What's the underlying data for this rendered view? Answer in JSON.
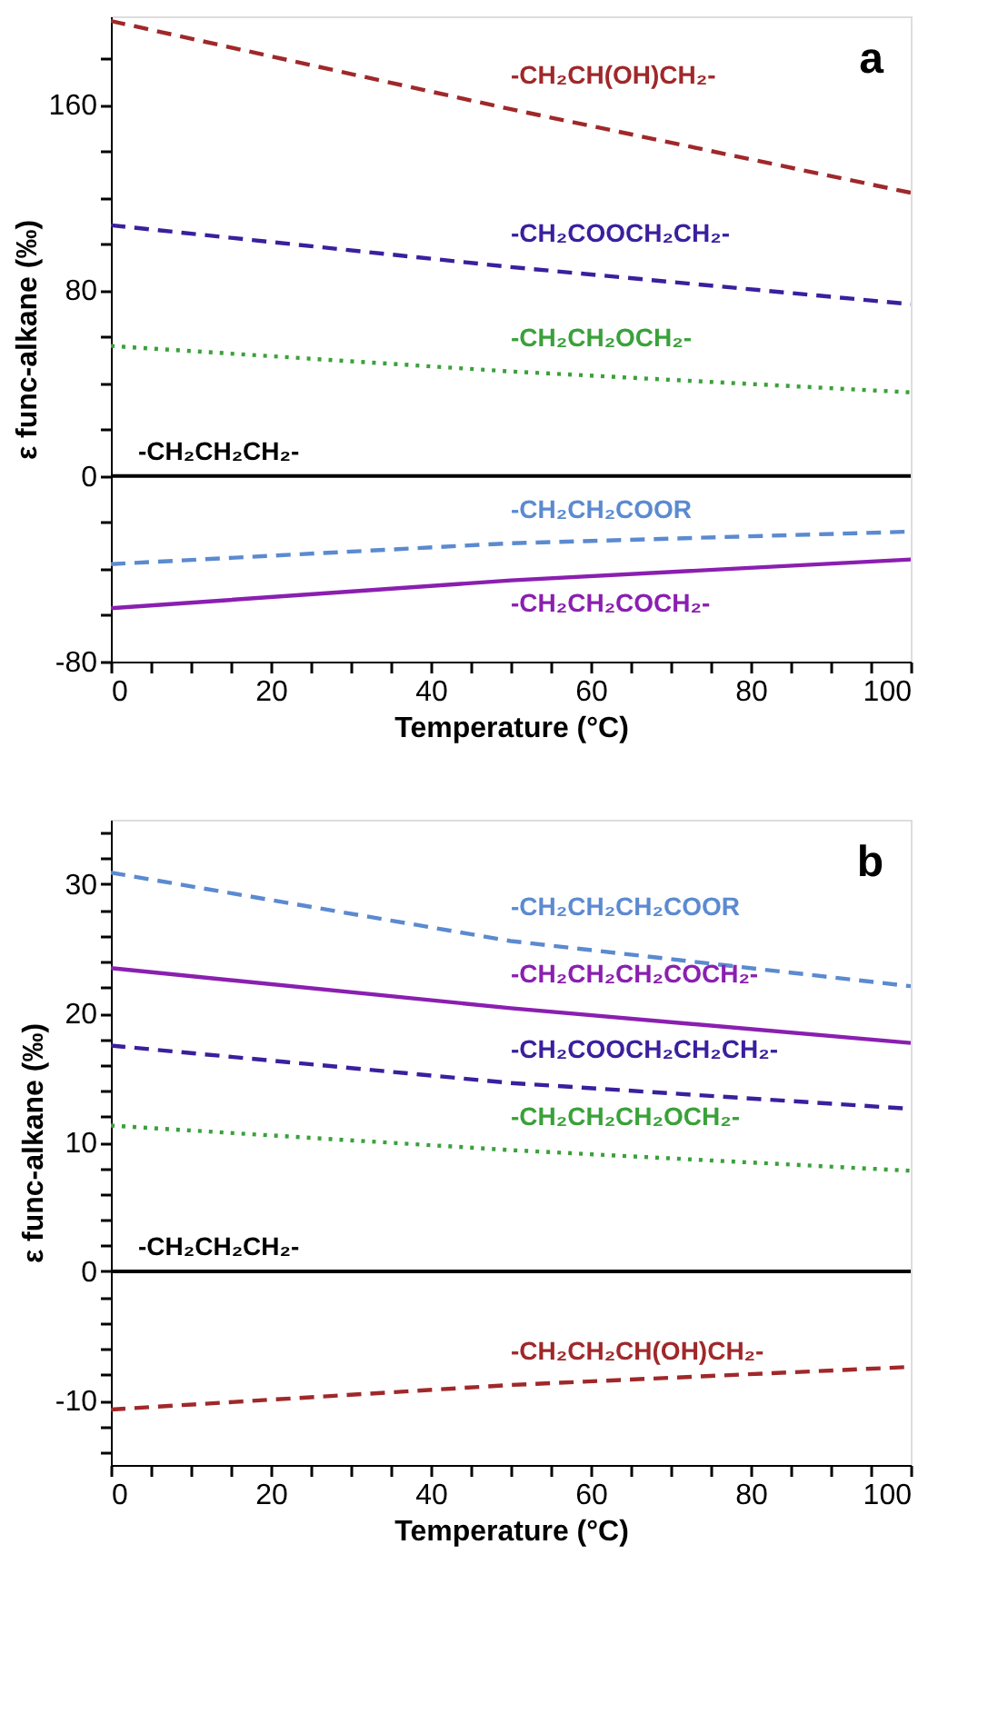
{
  "chart_data": [
    {
      "type": "line",
      "xlabel": "Temperature (°C)",
      "ylabel": "ε func-alkane (‰)",
      "annotations": [
        "a"
      ],
      "x": [
        0,
        50,
        100
      ],
      "xlim": [
        0,
        100
      ],
      "xticks": [
        0,
        {
          "value": 5,
          "label": null
        },
        {
          "value": 10,
          "label": null
        },
        {
          "value": 15,
          "label": null
        },
        20,
        {
          "value": 25,
          "label": null
        },
        {
          "value": 30,
          "label": null
        },
        {
          "value": 35,
          "label": null
        },
        40,
        {
          "value": 45,
          "label": null
        },
        {
          "value": 50,
          "label": null
        },
        {
          "value": 55,
          "label": null
        },
        60,
        {
          "value": 65,
          "label": null
        },
        {
          "value": 70,
          "label": null
        },
        {
          "value": 75,
          "label": null
        },
        80,
        {
          "value": 85,
          "label": null
        },
        {
          "value": 90,
          "label": null
        },
        {
          "value": 95,
          "label": null
        },
        100
      ],
      "ylim": [
        -80,
        198
      ],
      "yticks": [
        -80,
        {
          "value": -60,
          "label": null
        },
        {
          "value": -40,
          "label": null
        },
        {
          "value": -20,
          "label": null
        },
        0,
        {
          "value": 20,
          "label": null
        },
        {
          "value": 40,
          "label": null
        },
        {
          "value": 60,
          "label": null
        },
        80,
        {
          "value": 100,
          "label": null
        },
        {
          "value": 120,
          "label": null
        },
        {
          "value": 140,
          "label": null
        },
        160,
        {
          "value": 180,
          "label": null
        }
      ],
      "grid": false,
      "legend": false,
      "ref_lines": [
        {
          "axis": "y",
          "value": 0,
          "label": "-CH₂CH₂CH₂-",
          "color": "#000000",
          "line_style": "solid"
        }
      ],
      "series": [
        {
          "name": "-CH₂CH(OH)CH₂-",
          "color": "#a0282a",
          "line_style": "dashed",
          "values": [
            196,
            158,
            122
          ]
        },
        {
          "name": "-CH₂COOCH₂CH₂-",
          "color": "#3a1f9e",
          "line_style": "dashed",
          "values": [
            108,
            90,
            74
          ]
        },
        {
          "name": "-CH₂CH₂OCH₂-",
          "color": "#3aa13a",
          "line_style": "dotted",
          "values": [
            56,
            45,
            36
          ]
        },
        {
          "name": "-CH₂CH₂COOR",
          "color": "#5b8ad0",
          "line_style": "dashed",
          "values": [
            -38,
            -29,
            -24
          ]
        },
        {
          "name": "-CH₂CH₂COCH₂-",
          "color": "#8a1fb0",
          "line_style": "solid",
          "values": [
            -57,
            -45,
            -36
          ]
        }
      ]
    },
    {
      "type": "line",
      "xlabel": "Temperature (°C)",
      "ylabel": "ε func-alkane (‰)",
      "annotations": [
        "b"
      ],
      "x": [
        0,
        50,
        100
      ],
      "xlim": [
        0,
        100
      ],
      "xticks": [
        0,
        {
          "value": 5,
          "label": null
        },
        {
          "value": 10,
          "label": null
        },
        {
          "value": 15,
          "label": null
        },
        20,
        {
          "value": 25,
          "label": null
        },
        {
          "value": 30,
          "label": null
        },
        {
          "value": 35,
          "label": null
        },
        40,
        {
          "value": 45,
          "label": null
        },
        {
          "value": 50,
          "label": null
        },
        {
          "value": 55,
          "label": null
        },
        60,
        {
          "value": 65,
          "label": null
        },
        {
          "value": 70,
          "label": null
        },
        {
          "value": 75,
          "label": null
        },
        80,
        {
          "value": 85,
          "label": null
        },
        {
          "value": 90,
          "label": null
        },
        {
          "value": 95,
          "label": null
        },
        100
      ],
      "ylim": [
        -15,
        35
      ],
      "yticks": [
        {
          "value": -14,
          "label": null
        },
        {
          "value": -12,
          "label": null
        },
        -10,
        {
          "value": -8,
          "label": null
        },
        {
          "value": -6,
          "label": null
        },
        {
          "value": -4,
          "label": null
        },
        {
          "value": -2,
          "label": null
        },
        0,
        {
          "value": 2,
          "label": null
        },
        {
          "value": 4,
          "label": null
        },
        {
          "value": 6,
          "label": null
        },
        {
          "value": 8,
          "label": null
        },
        10,
        {
          "value": 12,
          "label": null
        },
        {
          "value": 14,
          "label": null
        },
        {
          "value": 16,
          "label": null
        },
        {
          "value": 18,
          "label": null
        },
        20,
        {
          "value": 22,
          "label": null
        },
        {
          "value": 24,
          "label": null
        },
        {
          "value": 26,
          "label": null
        },
        {
          "value": 28,
          "label": null
        },
        30,
        {
          "value": 32,
          "label": null
        },
        {
          "value": 34,
          "label": null
        }
      ],
      "grid": false,
      "legend": false,
      "ref_lines": [
        {
          "axis": "y",
          "value": 0,
          "label": "-CH₂CH₂CH₂-",
          "color": "#000000",
          "line_style": "solid"
        }
      ],
      "series": [
        {
          "name": "-CH₂CH₂CH₂COOR",
          "color": "#5b8ad0",
          "line_style": "dashed",
          "values": [
            30.9,
            25.6,
            22.1
          ]
        },
        {
          "name": "-CH₂CH₂CH₂COCH₂-",
          "color": "#8a1fb0",
          "line_style": "solid",
          "values": [
            23.5,
            20.4,
            17.7
          ]
        },
        {
          "name": "-CH₂COOCH₂CH₂CH₂-",
          "color": "#3a1f9e",
          "line_style": "dashed",
          "values": [
            17.5,
            14.6,
            12.6
          ]
        },
        {
          "name": "-CH₂CH₂CH₂OCH₂-",
          "color": "#3aa13a",
          "line_style": "dotted",
          "values": [
            11.3,
            9.4,
            7.8
          ]
        },
        {
          "name": "-CH₂CH₂CH(OH)CH₂-",
          "color": "#a0282a",
          "line_style": "dashed",
          "values": [
            -10.7,
            -8.8,
            -7.4
          ]
        }
      ]
    }
  ]
}
